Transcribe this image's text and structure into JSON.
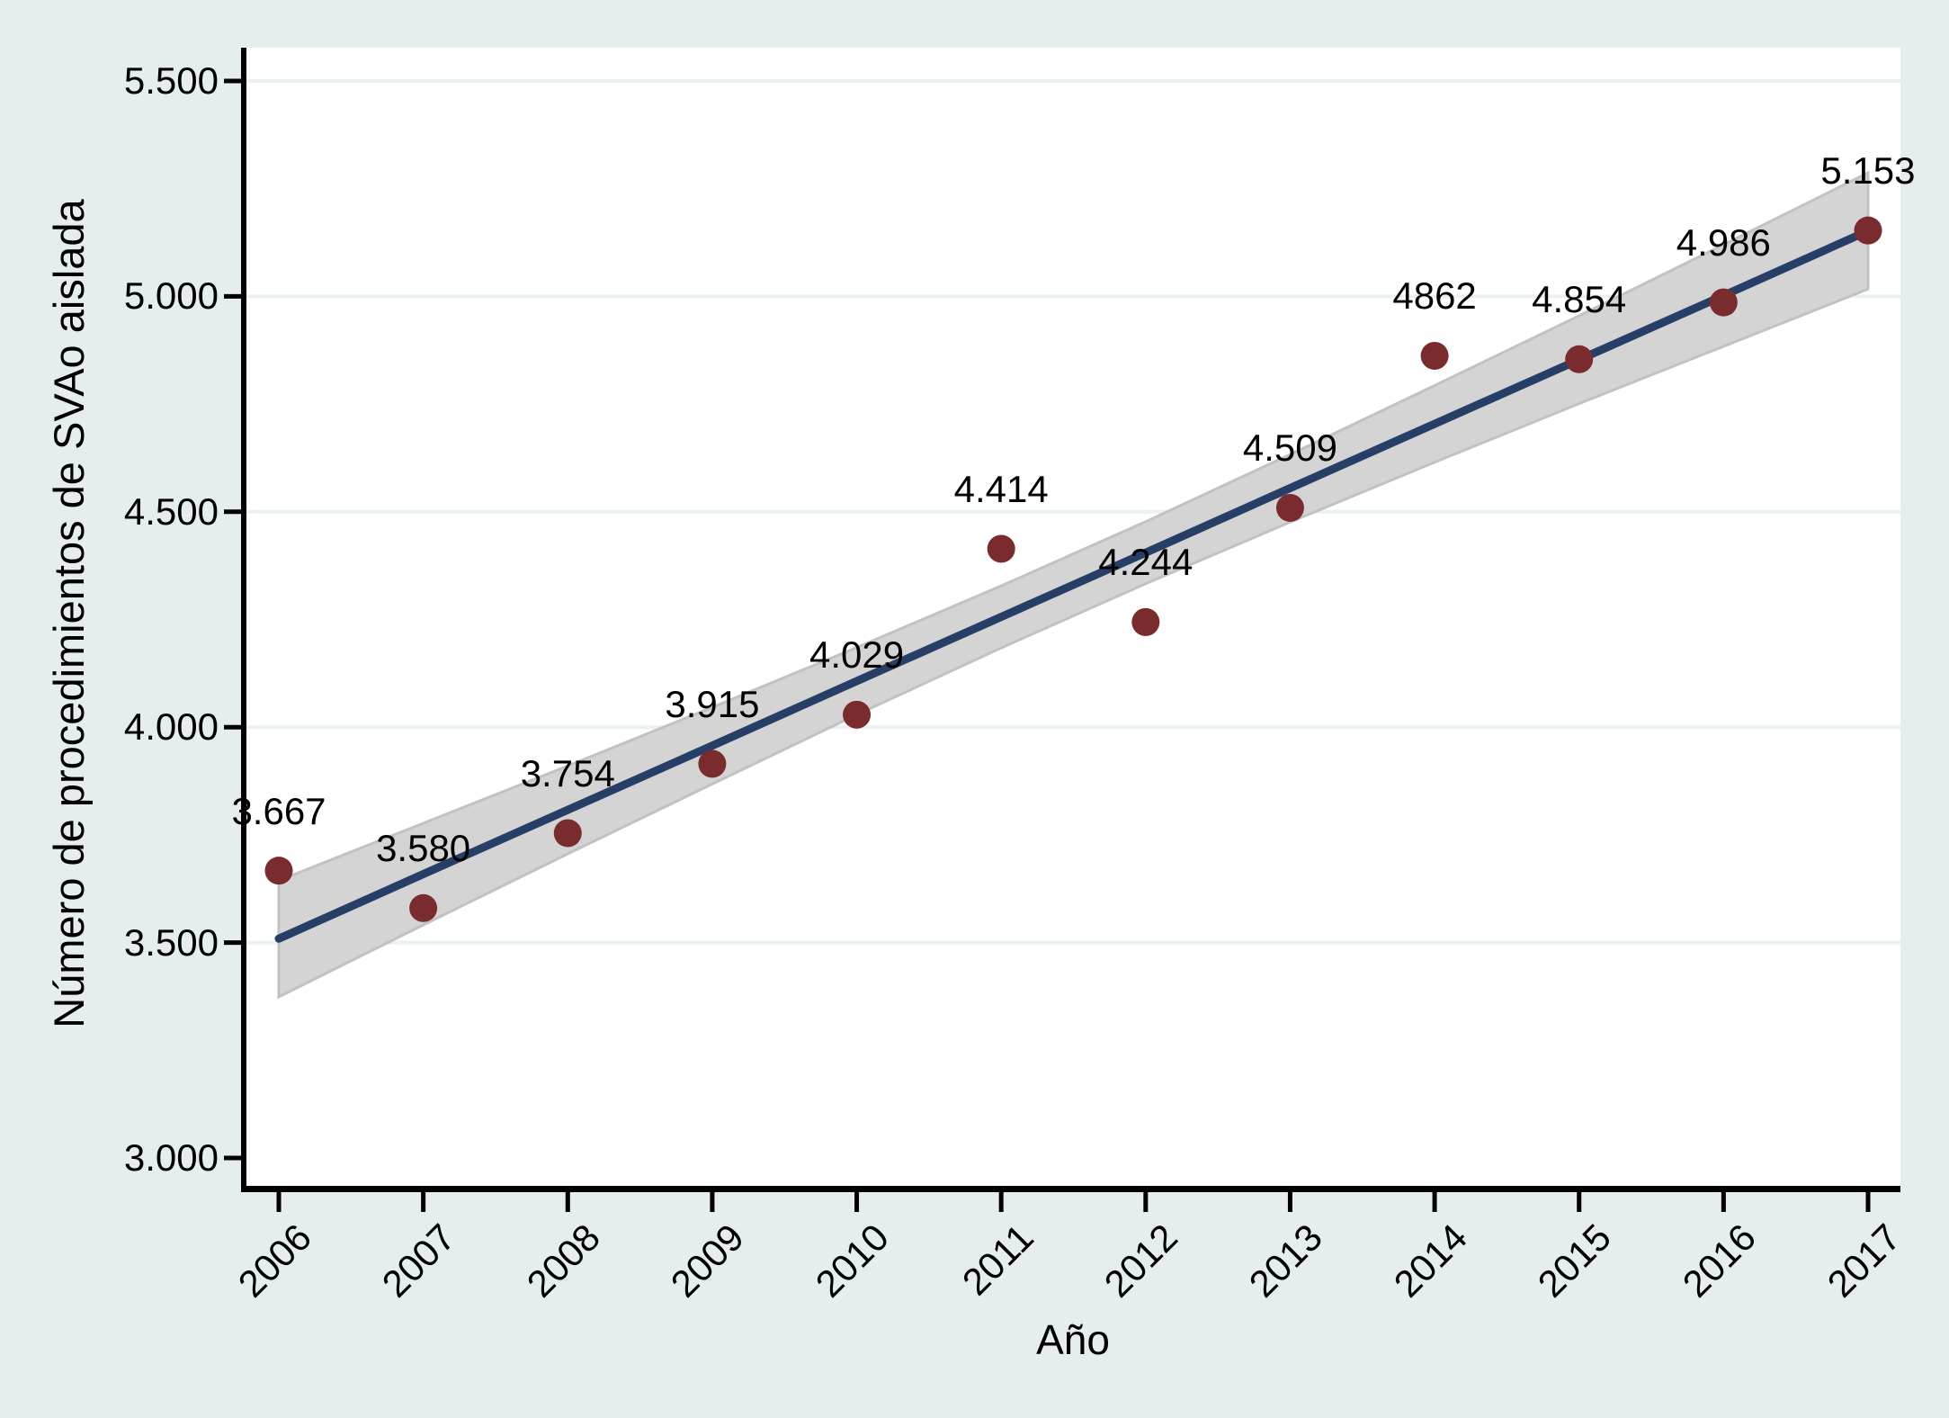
{
  "figure": {
    "background_color": "#e5edee",
    "plot_area_color": "#ffffff",
    "grid_color": "#eaf1f2",
    "axis_color": "#000000",
    "text_color": "#000000"
  },
  "chart_data": {
    "type": "scatter",
    "title": "",
    "xlabel": "Año",
    "ylabel": "Número de procedimientos de SVAo aislada",
    "grid": "horizontal-only",
    "legend": "none",
    "x": [
      2006,
      2007,
      2008,
      2009,
      2010,
      2011,
      2012,
      2013,
      2014,
      2015,
      2016,
      2017
    ],
    "x_tick_labels": [
      "2006",
      "2007",
      "2008",
      "2009",
      "2010",
      "2011",
      "2012",
      "2013",
      "2014",
      "2015",
      "2016",
      "2017"
    ],
    "y_tick_values": [
      3000,
      3500,
      4000,
      4500,
      5000,
      5500
    ],
    "y_tick_labels": [
      "3.000",
      "3.500",
      "4.000",
      "4.500",
      "5.000",
      "5.500"
    ],
    "xlim": [
      2005.77,
      2017.22
    ],
    "ylim": [
      2930,
      5580
    ],
    "series": [
      {
        "name": "observed-points",
        "type": "scatter",
        "color": "#7a2b2e",
        "marker": "circle",
        "values": [
          3667,
          3580,
          3754,
          3915,
          4029,
          4414,
          4244,
          4509,
          4862,
          4854,
          4986,
          5153
        ],
        "labels": [
          "3.667",
          "3.580",
          "3.754",
          "3.915",
          "4.029",
          "4.414",
          "4.244",
          "4.509",
          "4862",
          "4.854",
          "4.986",
          "5.153"
        ]
      },
      {
        "name": "linear-fit",
        "type": "line",
        "color": "#273f66",
        "values": [
          3509,
          3659,
          3808,
          3957,
          4107,
          4256,
          4405,
          4555,
          4704,
          4853,
          5002,
          5152
        ]
      },
      {
        "name": "confidence-band",
        "type": "area",
        "fill_color": "#d4d4d4",
        "stroke_color": "#c2c2c2",
        "upper": [
          3644,
          3777,
          3910,
          4046,
          4185,
          4328,
          4477,
          4633,
          4793,
          4955,
          5120,
          5287
        ],
        "lower": [
          3374,
          3541,
          3706,
          3868,
          4029,
          4184,
          4333,
          4476,
          4615,
          4751,
          4884,
          5017
        ]
      }
    ]
  }
}
